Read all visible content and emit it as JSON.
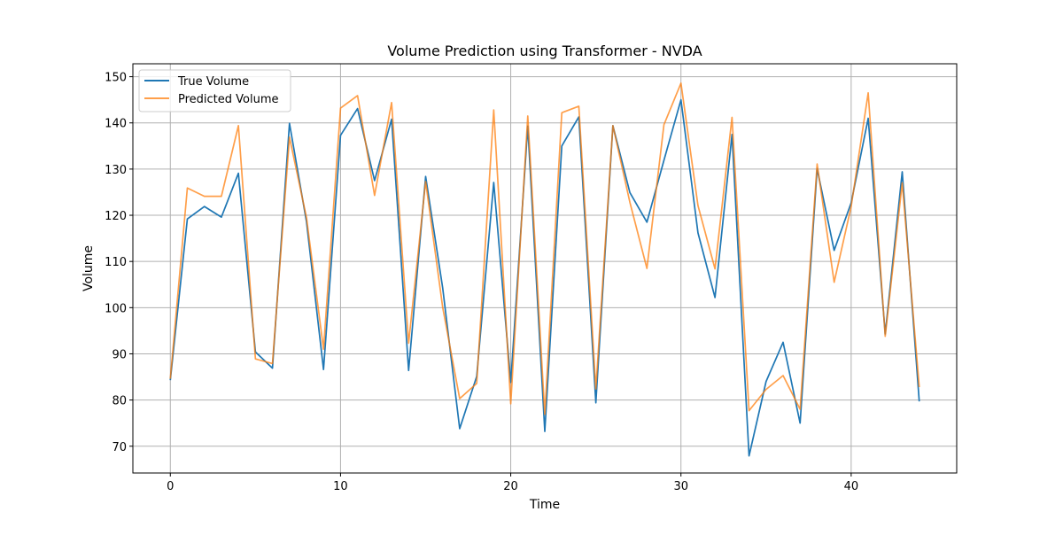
{
  "chart_data": {
    "type": "line",
    "title": "Volume Prediction using Transformer - NVDA",
    "xlabel": "Time",
    "ylabel": "Volume",
    "xlim": [
      -2.2,
      46.2
    ],
    "ylim": [
      64.2,
      152.8
    ],
    "xticks": [
      0,
      10,
      20,
      30,
      40
    ],
    "yticks": [
      70,
      80,
      90,
      100,
      110,
      120,
      130,
      140,
      150
    ],
    "grid": true,
    "legend_position": "top-left",
    "x": [
      0,
      1,
      2,
      3,
      4,
      5,
      6,
      7,
      8,
      9,
      10,
      11,
      12,
      13,
      14,
      15,
      16,
      17,
      18,
      19,
      20,
      21,
      22,
      23,
      24,
      25,
      26,
      27,
      28,
      29,
      30,
      31,
      32,
      33,
      34,
      35,
      36,
      37,
      38,
      39,
      40,
      41,
      42,
      43,
      44
    ],
    "series": [
      {
        "name": "True Volume",
        "color": "#1f77b4",
        "values": [
          84.3,
          119.2,
          121.9,
          119.6,
          129.1,
          90.4,
          86.9,
          139.9,
          118.6,
          86.6,
          137.3,
          143.1,
          127.5,
          140.8,
          86.4,
          128.4,
          104.3,
          73.8,
          85.1,
          127.1,
          83.8,
          139.3,
          73.2,
          135.0,
          141.3,
          79.4,
          139.4,
          124.9,
          118.5,
          131.9,
          145.0,
          116.2,
          102.2,
          137.5,
          67.9,
          84.0,
          92.5,
          75.0,
          130.1,
          112.4,
          122.7,
          141.0,
          94.3,
          129.4,
          79.7
        ]
      },
      {
        "name": "Predicted Volume",
        "color": "#ff7f0e",
        "values": [
          84.6,
          125.9,
          124.1,
          124.1,
          139.4,
          88.9,
          87.9,
          136.9,
          119.5,
          91.0,
          143.2,
          145.9,
          124.3,
          144.4,
          92.3,
          127.3,
          100.1,
          80.3,
          83.6,
          142.8,
          79.2,
          141.5,
          76.9,
          142.2,
          143.6,
          82.4,
          139.4,
          122.8,
          108.5,
          139.6,
          148.6,
          122.1,
          108.4,
          141.2,
          77.7,
          82.3,
          85.3,
          78.0,
          131.1,
          105.5,
          121.9,
          146.5,
          93.8,
          127.0,
          82.8
        ]
      }
    ]
  }
}
